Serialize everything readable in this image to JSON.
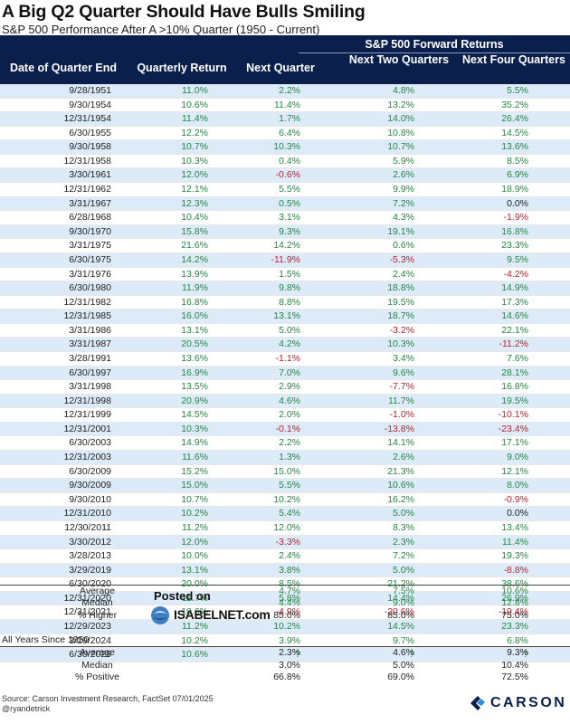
{
  "title": "A Big Q2 Quarter Should Have Bulls Smiling",
  "subtitle": "S&P 500 Performance After A >10% Quarter (1950 - Current)",
  "header": {
    "group_label": "S&P 500 Forward Returns",
    "date": "Date of Quarter End",
    "quarterly_return": "Quarterly Return",
    "next_quarter": "Next Quarter",
    "next_two": "Next Two Quarters",
    "next_four": "Next Four Quarters"
  },
  "colors": {
    "header_bg": "#0b1f4d",
    "shade": "#dcebf7",
    "positive": "#1e8a3e",
    "negative": "#c0202a"
  },
  "rows": [
    [
      "9/28/1951",
      "11.0%",
      "2.2%",
      "4.8%",
      "5.5%"
    ],
    [
      "9/30/1954",
      "10.6%",
      "11.4%",
      "13.2%",
      "35.2%"
    ],
    [
      "12/31/1954",
      "11.4%",
      "1.7%",
      "14.0%",
      "26.4%"
    ],
    [
      "6/30/1955",
      "12.2%",
      "6.4%",
      "10.8%",
      "14.5%"
    ],
    [
      "9/30/1958",
      "10.7%",
      "10.3%",
      "10.7%",
      "13.6%"
    ],
    [
      "12/31/1958",
      "10.3%",
      "0.4%",
      "5.9%",
      "8.5%"
    ],
    [
      "3/30/1961",
      "12.0%",
      "-0.6%",
      "2.6%",
      "6.9%"
    ],
    [
      "12/31/1962",
      "12.1%",
      "5.5%",
      "9.9%",
      "18.9%"
    ],
    [
      "3/31/1967",
      "12.3%",
      "0.5%",
      "7.2%",
      "0.0%"
    ],
    [
      "6/28/1968",
      "10.4%",
      "3.1%",
      "4.3%",
      "-1.9%"
    ],
    [
      "9/30/1970",
      "15.8%",
      "9.3%",
      "19.1%",
      "16.8%"
    ],
    [
      "3/31/1975",
      "21.6%",
      "14.2%",
      "0.6%",
      "23.3%"
    ],
    [
      "6/30/1975",
      "14.2%",
      "-11.9%",
      "-5.3%",
      "9.5%"
    ],
    [
      "3/31/1976",
      "13.9%",
      "1.5%",
      "2.4%",
      "-4.2%"
    ],
    [
      "6/30/1980",
      "11.9%",
      "9.8%",
      "18.8%",
      "14.9%"
    ],
    [
      "12/31/1982",
      "16.8%",
      "8.8%",
      "19.5%",
      "17.3%"
    ],
    [
      "12/31/1985",
      "16.0%",
      "13.1%",
      "18.7%",
      "14.6%"
    ],
    [
      "3/31/1986",
      "13.1%",
      "5.0%",
      "-3.2%",
      "22.1%"
    ],
    [
      "3/31/1987",
      "20.5%",
      "4.2%",
      "10.3%",
      "-11.2%"
    ],
    [
      "3/28/1991",
      "13.6%",
      "-1.1%",
      "3.4%",
      "7.6%"
    ],
    [
      "6/30/1997",
      "16.9%",
      "7.0%",
      "9.6%",
      "28.1%"
    ],
    [
      "3/31/1998",
      "13.5%",
      "2.9%",
      "-7.7%",
      "16.8%"
    ],
    [
      "12/31/1998",
      "20.9%",
      "4.6%",
      "11.7%",
      "19.5%"
    ],
    [
      "12/31/1999",
      "14.5%",
      "2.0%",
      "-1.0%",
      "-10.1%"
    ],
    [
      "12/31/2001",
      "10.3%",
      "-0.1%",
      "-13.8%",
      "-23.4%"
    ],
    [
      "6/30/2003",
      "14.9%",
      "2.2%",
      "14.1%",
      "17.1%"
    ],
    [
      "12/31/2003",
      "11.6%",
      "1.3%",
      "2.6%",
      "9.0%"
    ],
    [
      "6/30/2009",
      "15.2%",
      "15.0%",
      "21.3%",
      "12.1%"
    ],
    [
      "9/30/2009",
      "15.0%",
      "5.5%",
      "10.6%",
      "8.0%"
    ],
    [
      "9/30/2010",
      "10.7%",
      "10.2%",
      "16.2%",
      "-0.9%"
    ],
    [
      "12/31/2010",
      "10.2%",
      "5.4%",
      "5.0%",
      "0.0%"
    ],
    [
      "12/30/2011",
      "11.2%",
      "12.0%",
      "8.3%",
      "13.4%"
    ],
    [
      "3/30/2012",
      "12.0%",
      "-3.3%",
      "2.3%",
      "11.4%"
    ],
    [
      "3/28/2013",
      "10.0%",
      "2.4%",
      "7.2%",
      "19.3%"
    ],
    [
      "3/29/2019",
      "13.1%",
      "3.8%",
      "5.0%",
      "-8.8%"
    ],
    [
      "6/30/2020",
      "20.0%",
      "8.5%",
      "21.2%",
      "38.6%"
    ],
    [
      "12/31/2020",
      "11.7%",
      "5.8%",
      "14.4%",
      "26.9%"
    ],
    [
      "12/31/2021",
      "10.6%",
      "-4.9%",
      "-20.6%",
      "-19.4%"
    ],
    [
      "12/29/2023",
      "11.2%",
      "10.2%",
      "14.5%",
      "23.3%"
    ],
    [
      "3/29/2024",
      "10.2%",
      "3.9%",
      "9.7%",
      "6.8%"
    ],
    [
      "6/30/2025",
      "10.6%",
      "?",
      "?",
      "?"
    ]
  ],
  "summary": {
    "average": {
      "label": "Average",
      "nq": "4.7%",
      "n2": "7.5%",
      "n4": "10.6%"
    },
    "median": {
      "label": "Median",
      "nq": "4.4%",
      "n2": "9.0%",
      "n4": "12.8%"
    },
    "higher": {
      "label": "% Higher",
      "nq": "85.0%",
      "n2": "85.0%",
      "n4": "75.0%"
    }
  },
  "all_years": {
    "label": "All Years Since 1950",
    "average": {
      "label": "Average",
      "nq": "2.3%",
      "n2": "4.6%",
      "n4": "9.3%"
    },
    "median": {
      "label": "Median",
      "nq": "3.0%",
      "n2": "5.0%",
      "n4": "10.4%"
    },
    "positive": {
      "label": "% Positive",
      "nq": "66.8%",
      "n2": "69.0%",
      "n4": "72.5%"
    }
  },
  "posted": {
    "line1": "Posted on",
    "line2": "ISABELNET.com"
  },
  "source": {
    "line1": "Source: Carson Investment Research, FactSet 07/01/2025",
    "line2": "@ryandetrick"
  },
  "brand": {
    "name": "CARSON",
    "icon": "carson-logo"
  }
}
